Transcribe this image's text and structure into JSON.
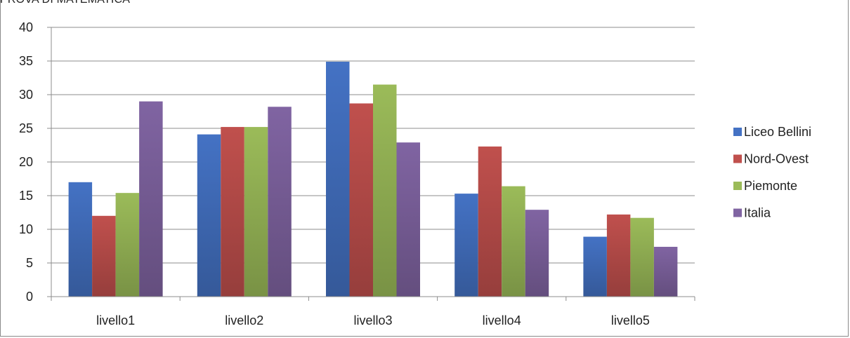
{
  "page": {
    "title": "PROVA DI MATEMATICA"
  },
  "chart_data": {
    "type": "bar",
    "title": "PROVA DI MATEMATICA",
    "categories": [
      "livello1",
      "livello2",
      "livello3",
      "livello4",
      "livello5"
    ],
    "series": [
      {
        "name": "Liceo Bellini",
        "color": "#4472C4",
        "values": [
          17.0,
          24.1,
          34.9,
          15.3,
          8.9
        ]
      },
      {
        "name": "Nord-Ovest",
        "color": "#C0504D",
        "values": [
          12.0,
          25.2,
          28.7,
          22.3,
          12.2
        ]
      },
      {
        "name": "Piemonte",
        "color": "#9BBB59",
        "values": [
          15.4,
          25.2,
          31.5,
          16.4,
          11.7
        ]
      },
      {
        "name": "Italia",
        "color": "#8064A2",
        "values": [
          29.0,
          28.2,
          22.9,
          12.9,
          7.4
        ]
      }
    ],
    "ylim": [
      0,
      40
    ],
    "yticks": [
      "0",
      "5",
      "10",
      "15",
      "20",
      "25",
      "30",
      "35",
      "40"
    ],
    "xlabel": "",
    "ylabel": "",
    "grid": true,
    "legend": "right"
  }
}
